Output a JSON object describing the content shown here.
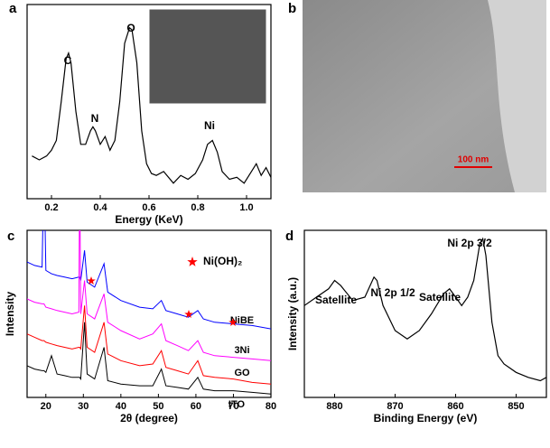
{
  "chart_data": [
    {
      "type": "line",
      "panel_label": "a",
      "color": "#000000",
      "x": [
        0.12,
        0.15,
        0.18,
        0.2,
        0.22,
        0.24,
        0.26,
        0.27,
        0.28,
        0.3,
        0.32,
        0.34,
        0.36,
        0.37,
        0.38,
        0.4,
        0.42,
        0.44,
        0.46,
        0.48,
        0.5,
        0.52,
        0.53,
        0.55,
        0.57,
        0.59,
        0.61,
        0.63,
        0.66,
        0.7,
        0.73,
        0.76,
        0.79,
        0.82,
        0.84,
        0.86,
        0.88,
        0.9,
        0.93,
        0.96,
        0.99,
        1.02,
        1.04,
        1.06,
        1.08,
        1.1
      ],
      "values": [
        22,
        20,
        22,
        25,
        30,
        50,
        72,
        75,
        70,
        45,
        28,
        28,
        35,
        37,
        35,
        28,
        32,
        25,
        30,
        50,
        80,
        88,
        87,
        70,
        35,
        18,
        13,
        12,
        14,
        8,
        12,
        10,
        13,
        20,
        28,
        30,
        24,
        14,
        10,
        11,
        8,
        14,
        18,
        12,
        16,
        11
      ],
      "xlim": [
        0.1,
        1.1
      ],
      "ylim": [
        0,
        100
      ],
      "xticks": [
        0.2,
        0.4,
        0.6,
        0.8,
        {
          "value": 1,
          "label": "1.0"
        }
      ],
      "x_label": "Energy (KeV)",
      "annotations": [
        "C",
        "N",
        "O",
        "Ni"
      ]
    },
    {
      "type": "line",
      "panel_label": "c",
      "x": [
        15,
        17,
        19,
        19.5,
        20,
        21.5,
        23,
        25,
        27,
        28.8,
        29,
        29.3,
        30.3,
        31,
        33,
        35.5,
        36.5,
        40,
        45,
        48.5,
        50.8,
        52,
        55,
        58,
        60.5,
        62,
        65,
        70,
        75,
        80
      ],
      "series": [
        {
          "name": "NiBE",
          "color": "#0000ff",
          "values": [
            81,
            79,
            78,
            140,
            76,
            74,
            73,
            72,
            71,
            72,
            72,
            70,
            88,
            69,
            66,
            80,
            63,
            58,
            54,
            53,
            58,
            52,
            50,
            48,
            52,
            47,
            45,
            44,
            43,
            41
          ]
        },
        {
          "name": "3Ni",
          "color": "#ff00ff",
          "values": [
            59,
            57,
            56,
            56,
            54,
            53,
            52,
            51,
            50,
            51,
            140,
            50,
            70,
            50,
            47,
            62,
            45,
            40,
            35,
            38,
            44,
            34,
            31,
            28,
            34,
            27,
            25,
            24,
            23,
            22
          ]
        },
        {
          "name": "GO",
          "color": "#ff0000",
          "values": [
            38,
            36,
            34,
            34,
            33,
            32,
            31,
            30,
            29,
            30,
            30,
            29,
            55,
            30,
            27,
            45,
            26,
            22,
            19,
            20,
            28,
            18,
            16,
            14,
            22,
            13,
            12,
            11,
            9,
            8
          ]
        },
        {
          "name": "ITO",
          "color": "#000000",
          "values": [
            19,
            17,
            16,
            16,
            15,
            25,
            14,
            13,
            12,
            12,
            12,
            11,
            45,
            14,
            11,
            30,
            10,
            8,
            7,
            7,
            17,
            7,
            6,
            5,
            12,
            5,
            4,
            4,
            3,
            2
          ]
        }
      ],
      "xlim": [
        15,
        80
      ],
      "ylim": [
        0,
        100
      ],
      "xticks": [
        20,
        30,
        40,
        50,
        60,
        70,
        80
      ],
      "x_label": "2θ (degree)",
      "y_label": "Intensity",
      "legend": "Ni(OH)₂"
    },
    {
      "type": "line",
      "panel_label": "d",
      "color": "#000000",
      "x": [
        885,
        883,
        881,
        880,
        879,
        877,
        875,
        874,
        873.5,
        873,
        872,
        870,
        868,
        866,
        864,
        862,
        861,
        860,
        859,
        858,
        857,
        856,
        855.5,
        855,
        854,
        853,
        852,
        850,
        848,
        846,
        845
      ],
      "values": [
        55,
        60,
        65,
        70,
        67,
        58,
        60,
        68,
        72,
        70,
        55,
        40,
        35,
        40,
        50,
        62,
        65,
        60,
        55,
        60,
        70,
        92,
        95,
        85,
        45,
        25,
        20,
        15,
        12,
        10,
        12
      ],
      "xlim": [
        885,
        845
      ],
      "ylim": [
        0,
        100
      ],
      "xticks": [
        880,
        870,
        860,
        850
      ],
      "x_label": "Binding Energy (eV)",
      "y_label": "Intensity (a.u.)",
      "annotations": [
        "Satellite",
        "Ni 2p 1/2",
        "Satellite",
        "Ni 2p 3/2"
      ]
    }
  ],
  "image_panel": {
    "panel_label": "b",
    "scale_bar": "100 nm"
  }
}
